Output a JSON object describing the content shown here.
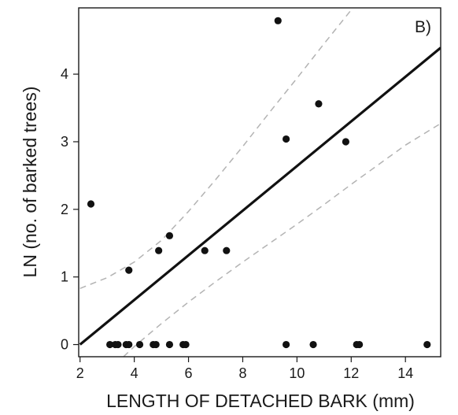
{
  "chart_data": {
    "type": "scatter",
    "panel_label": "B)",
    "xlabel": "LENGTH OF DETACHED BARK (mm)",
    "ylabel": "LN (no. of barked trees)",
    "xlim": [
      1.95,
      15.3
    ],
    "ylim": [
      -0.18,
      4.98
    ],
    "xticks": [
      2,
      4,
      6,
      8,
      10,
      12,
      14
    ],
    "yticks": [
      0,
      1,
      2,
      3,
      4
    ],
    "grid": false,
    "points": [
      {
        "x": 2.4,
        "y": 2.08
      },
      {
        "x": 3.1,
        "y": 0
      },
      {
        "x": 3.3,
        "y": 0
      },
      {
        "x": 3.4,
        "y": 0
      },
      {
        "x": 3.7,
        "y": 0
      },
      {
        "x": 3.8,
        "y": 0
      },
      {
        "x": 3.8,
        "y": 1.1
      },
      {
        "x": 4.2,
        "y": 0
      },
      {
        "x": 4.7,
        "y": 0
      },
      {
        "x": 4.8,
        "y": 0
      },
      {
        "x": 4.9,
        "y": 1.39
      },
      {
        "x": 5.3,
        "y": 0
      },
      {
        "x": 5.3,
        "y": 1.61
      },
      {
        "x": 5.8,
        "y": 0
      },
      {
        "x": 5.9,
        "y": 0
      },
      {
        "x": 6.6,
        "y": 1.39
      },
      {
        "x": 7.4,
        "y": 1.39
      },
      {
        "x": 9.3,
        "y": 4.79
      },
      {
        "x": 9.6,
        "y": 0
      },
      {
        "x": 9.6,
        "y": 3.04
      },
      {
        "x": 10.6,
        "y": 0
      },
      {
        "x": 10.8,
        "y": 3.56
      },
      {
        "x": 11.8,
        "y": 3.0
      },
      {
        "x": 12.2,
        "y": 0
      },
      {
        "x": 12.3,
        "y": 0
      },
      {
        "x": 14.8,
        "y": 0
      }
    ],
    "fit_line": {
      "x": [
        2.0,
        15.3
      ],
      "y": [
        0.0,
        4.39
      ]
    },
    "confidence_band": {
      "upper": {
        "x": [
          2.0,
          3.0,
          4.0,
          5.0,
          6.0,
          7.0,
          8.0,
          9.0,
          10.0,
          11.0,
          12.0,
          13.0,
          14.0
        ],
        "y": [
          0.83,
          0.99,
          1.22,
          1.54,
          1.97,
          2.44,
          2.93,
          3.44,
          3.94,
          4.45,
          4.95,
          5.46,
          5.97
        ]
      },
      "lower": {
        "x": [
          3.6,
          4.0,
          5.0,
          6.0,
          7.0,
          8.0,
          9.0,
          10.0,
          11.0,
          12.0,
          13.0,
          14.0,
          15.3
        ],
        "y": [
          -0.18,
          -0.03,
          0.31,
          0.63,
          0.93,
          1.22,
          1.5,
          1.78,
          2.07,
          2.37,
          2.66,
          2.95,
          3.27
        ]
      }
    },
    "colors": {
      "points": "#111111",
      "fit": "#111111",
      "band": "#b3b3b3",
      "axis": "#1a1a1a"
    }
  }
}
